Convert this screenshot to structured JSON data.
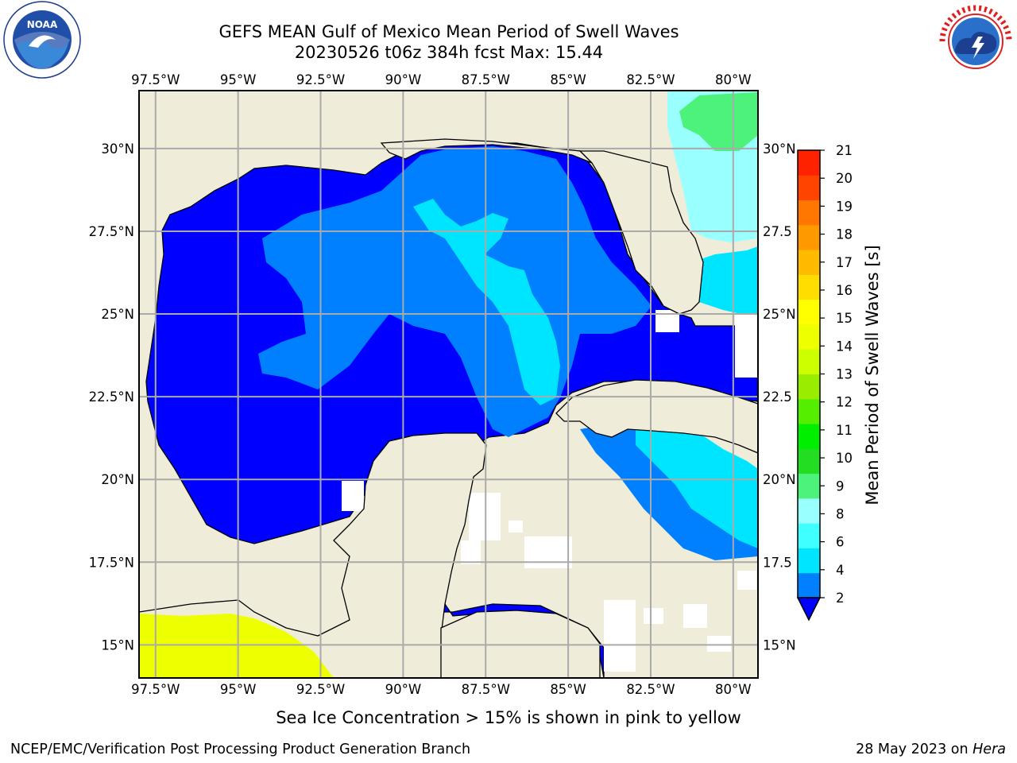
{
  "header": {
    "title_line1": "GEFS MEAN Gulf of Mexico Mean Period of Swell Waves",
    "title_line2": "20230526 t06z 384h fcst   Max: 15.44"
  },
  "logos": {
    "left": "noaa-logo",
    "right": "national-weather-service-logo"
  },
  "map": {
    "lon_labels": [
      "97.5°W",
      "95°W",
      "92.5°W",
      "90°W",
      "87.5°W",
      "85°W",
      "82.5°W",
      "80°W"
    ],
    "lat_labels_left": [
      "30°N",
      "27.5°N",
      "25°N",
      "22.5°N",
      "20°N",
      "17.5°N",
      "15°N"
    ],
    "lat_labels_right": [
      "30°N",
      "27.5",
      "25°N",
      "22.5",
      "20°N",
      "17.5",
      "15°N"
    ],
    "lon_range": [
      -98,
      -79.25
    ],
    "lat_range": [
      14,
      31.75
    ],
    "land_color": "#efedda",
    "grid_color": "#aaaaaa"
  },
  "colorbar": {
    "label": "Mean Period of Swell Waves [s]",
    "ticks": [
      "21",
      "20",
      "19",
      "18",
      "17",
      "16",
      "15",
      "14",
      "13",
      "12",
      "11",
      "10",
      "9",
      "8",
      "6",
      "4",
      "2"
    ],
    "colors": [
      "#0000ff",
      "#0080ff",
      "#00e5ff",
      "#40ffff",
      "#99ffff",
      "#4cf27a",
      "#22dd22",
      "#00ee00",
      "#55ee00",
      "#99ee00",
      "#ccff00",
      "#eeff00",
      "#ffff00",
      "#ffdd00",
      "#ffbb00",
      "#ff9900",
      "#ff7700",
      "#ff4400",
      "#ff2200"
    ]
  },
  "notes": {
    "ice": "Sea Ice Concentration > 15% is shown in pink to yellow",
    "footer_left": "NCEP/EMC/Verification Post Processing Product Generation Branch",
    "footer_date": "28 May 2023 on ",
    "footer_host": "Hera"
  }
}
